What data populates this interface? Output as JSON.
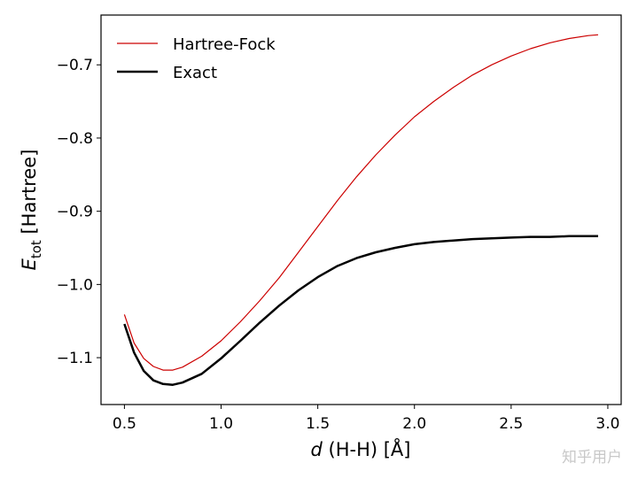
{
  "chart_data": {
    "type": "line",
    "title": "",
    "xlabel_italic": "d",
    "xlabel_rest": " (H-H) [Å]",
    "ylabel_main": "E",
    "ylabel_sub": "tot",
    "ylabel_rest": " [Hartree]",
    "xlim": [
      0.379,
      3.069
    ],
    "ylim": [
      -1.164,
      -0.632
    ],
    "xticks": [
      0.5,
      1.0,
      1.5,
      2.0,
      2.5,
      3.0
    ],
    "xtick_labels": [
      "0.5",
      "1.0",
      "1.5",
      "2.0",
      "2.5",
      "3.0"
    ],
    "yticks": [
      -0.7,
      -0.8,
      -0.9,
      -1.0,
      -1.1
    ],
    "ytick_labels": [
      "−0.7",
      "−0.8",
      "−0.9",
      "−1.0",
      "−1.1"
    ],
    "grid": false,
    "legend_position": "top-left",
    "series": [
      {
        "name": "Hartree-Fock",
        "color": "#cc0000",
        "width": 1.2,
        "x": [
          0.5,
          0.55,
          0.6,
          0.65,
          0.7,
          0.75,
          0.8,
          0.9,
          1.0,
          1.1,
          1.2,
          1.3,
          1.4,
          1.5,
          1.6,
          1.7,
          1.8,
          1.9,
          2.0,
          2.1,
          2.2,
          2.3,
          2.4,
          2.5,
          2.6,
          2.7,
          2.8,
          2.9,
          2.95
        ],
        "y": [
          -1.041,
          -1.08,
          -1.101,
          -1.112,
          -1.117,
          -1.117,
          -1.113,
          -1.098,
          -1.077,
          -1.051,
          -1.022,
          -0.991,
          -0.956,
          -0.921,
          -0.886,
          -0.853,
          -0.823,
          -0.796,
          -0.771,
          -0.75,
          -0.731,
          -0.714,
          -0.7,
          -0.688,
          -0.678,
          -0.67,
          -0.664,
          -0.66,
          -0.659
        ]
      },
      {
        "name": "Exact",
        "color": "#000000",
        "width": 2.5,
        "x": [
          0.5,
          0.55,
          0.6,
          0.65,
          0.7,
          0.75,
          0.8,
          0.9,
          1.0,
          1.1,
          1.2,
          1.3,
          1.4,
          1.5,
          1.6,
          1.7,
          1.8,
          1.9,
          2.0,
          2.1,
          2.2,
          2.3,
          2.4,
          2.5,
          2.6,
          2.7,
          2.8,
          2.9,
          2.95
        ],
        "y": [
          -1.054,
          -1.093,
          -1.118,
          -1.131,
          -1.136,
          -1.137,
          -1.134,
          -1.122,
          -1.101,
          -1.077,
          -1.052,
          -1.029,
          -1.008,
          -0.99,
          -0.975,
          -0.964,
          -0.956,
          -0.95,
          -0.945,
          -0.942,
          -0.94,
          -0.938,
          -0.937,
          -0.936,
          -0.935,
          -0.935,
          -0.934,
          -0.934,
          -0.934
        ]
      }
    ]
  },
  "watermark": "知乎用户"
}
